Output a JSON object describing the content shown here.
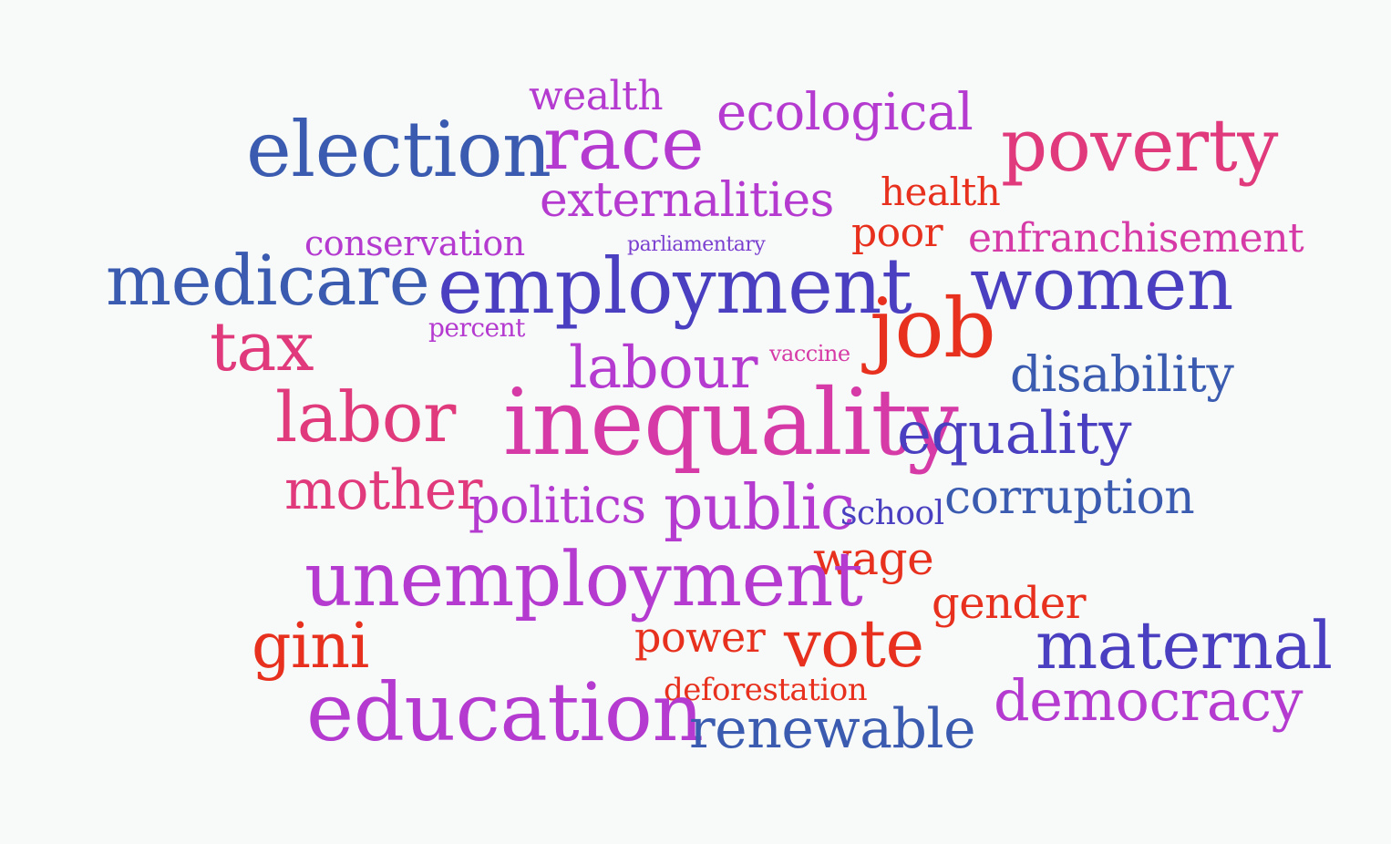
{
  "word_cloud": {
    "words": {
      "wealth": "wealth",
      "race": "race",
      "ecological": "ecological",
      "poverty": "poverty",
      "election": "election",
      "health": "health",
      "externalities": "externalities",
      "poor": "poor",
      "enfranchisement": "enfranchisement",
      "conservation": "conservation",
      "parliamentary": "parliamentary",
      "medicare": "medicare",
      "employment": "employment",
      "women": "women",
      "job": "job",
      "tax": "tax",
      "percent": "percent",
      "labour": "labour",
      "vaccine": "vaccine",
      "disability": "disability",
      "labor": "labor",
      "inequality": "inequality",
      "equality": "equality",
      "mother": "mother",
      "politics": "politics",
      "public": "public",
      "school": "school",
      "corruption": "corruption",
      "wage": "wage",
      "unemployment": "unemployment",
      "gender": "gender",
      "gini": "gini",
      "power": "power",
      "vote": "vote",
      "maternal": "maternal",
      "deforestation": "deforestation",
      "democracy": "democracy",
      "education": "education",
      "renewable": "renewable"
    },
    "colors": {
      "blue": "#3a5bb0",
      "indigo": "#4a3fc0",
      "violet": "#7a3fd0",
      "purple": "#b43ad0",
      "magenta": "#d63aa6",
      "pink": "#e13a7c",
      "rose": "#e83050",
      "red": "#e8301e"
    },
    "background": "#f7faf8"
  }
}
